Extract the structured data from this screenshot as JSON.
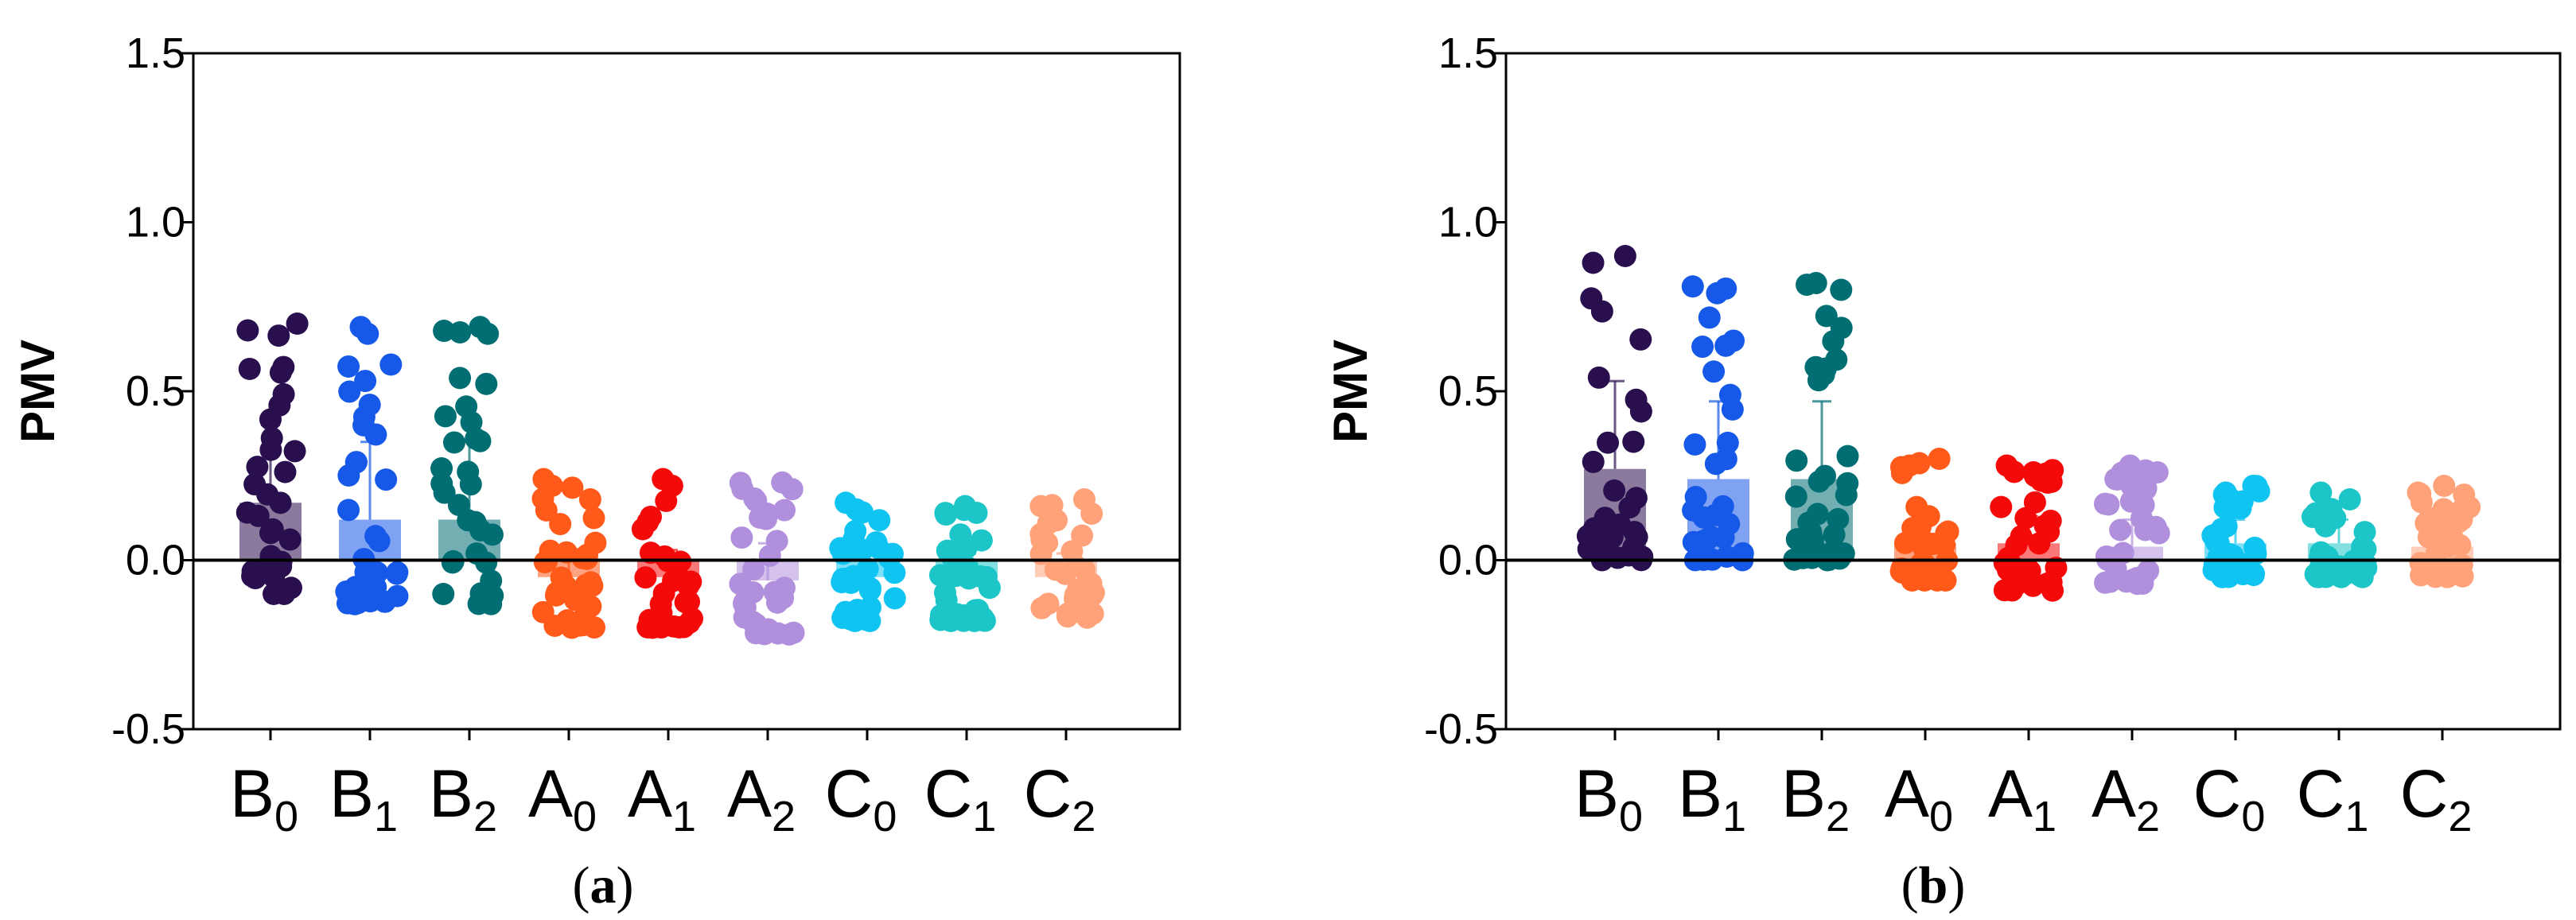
{
  "chart_data": [
    {
      "type": "bar",
      "panel": "a",
      "panel_label": "a",
      "ylabel": "PMV",
      "xlabel": "",
      "ylim": [
        -0.5,
        1.5
      ],
      "yticks": [
        "-0.5",
        "0.0",
        "0.5",
        "1.0",
        "1.5"
      ],
      "ytick_values": [
        -0.5,
        0.0,
        0.5,
        1.0,
        1.5
      ],
      "categories": [
        {
          "letter": "B",
          "sub": "0"
        },
        {
          "letter": "B",
          "sub": "1"
        },
        {
          "letter": "B",
          "sub": "2"
        },
        {
          "letter": "A",
          "sub": "0"
        },
        {
          "letter": "A",
          "sub": "1"
        },
        {
          "letter": "A",
          "sub": "2"
        },
        {
          "letter": "C",
          "sub": "0"
        },
        {
          "letter": "C",
          "sub": "1"
        },
        {
          "letter": "C",
          "sub": "2"
        }
      ],
      "colors": [
        "#2a0f4f",
        "#1658e8",
        "#006e73",
        "#ff5a1a",
        "#f50a0a",
        "#b090dc",
        "#10c4f2",
        "#1cc6c8",
        "#ffa27a"
      ],
      "values": [
        0.17,
        0.12,
        0.12,
        -0.05,
        -0.05,
        -0.06,
        -0.05,
        -0.05,
        -0.05
      ],
      "errors": [
        0.23,
        0.23,
        0.23,
        0.08,
        0.08,
        0.11,
        0.07,
        0.07,
        0.07
      ],
      "ranges": [
        [
          -0.1,
          0.7
        ],
        [
          -0.13,
          0.69
        ],
        [
          -0.13,
          0.69
        ],
        [
          -0.2,
          0.24
        ],
        [
          -0.2,
          0.24
        ],
        [
          -0.22,
          0.23
        ],
        [
          -0.18,
          0.17
        ],
        [
          -0.18,
          0.16
        ],
        [
          -0.17,
          0.18
        ]
      ]
    },
    {
      "type": "bar",
      "panel": "b",
      "panel_label": "b",
      "ylabel": "PMV",
      "xlabel": "",
      "ylim": [
        -0.5,
        1.5
      ],
      "yticks": [
        "-0.5",
        "0.0",
        "0.5",
        "1.0",
        "1.5"
      ],
      "ytick_values": [
        -0.5,
        0.0,
        0.5,
        1.0,
        1.5
      ],
      "categories": [
        {
          "letter": "B",
          "sub": "0"
        },
        {
          "letter": "B",
          "sub": "1"
        },
        {
          "letter": "B",
          "sub": "2"
        },
        {
          "letter": "A",
          "sub": "0"
        },
        {
          "letter": "A",
          "sub": "1"
        },
        {
          "letter": "A",
          "sub": "2"
        },
        {
          "letter": "C",
          "sub": "0"
        },
        {
          "letter": "C",
          "sub": "1"
        },
        {
          "letter": "C",
          "sub": "2"
        }
      ],
      "colors": [
        "#2a0f4f",
        "#1658e8",
        "#006e73",
        "#ff5a1a",
        "#f50a0a",
        "#b090dc",
        "#10c4f2",
        "#1cc6c8",
        "#ffa27a"
      ],
      "values": [
        0.27,
        0.24,
        0.24,
        0.05,
        0.05,
        0.04,
        0.05,
        0.05,
        0.04
      ],
      "errors": [
        0.26,
        0.23,
        0.23,
        0.08,
        0.08,
        0.08,
        0.07,
        0.07,
        0.07
      ],
      "ranges": [
        [
          0.0,
          0.9
        ],
        [
          0.0,
          0.81
        ],
        [
          0.0,
          0.82
        ],
        [
          -0.06,
          0.3
        ],
        [
          -0.09,
          0.28
        ],
        [
          -0.07,
          0.28
        ],
        [
          -0.05,
          0.22
        ],
        [
          -0.05,
          0.2
        ],
        [
          -0.05,
          0.22
        ]
      ]
    }
  ]
}
